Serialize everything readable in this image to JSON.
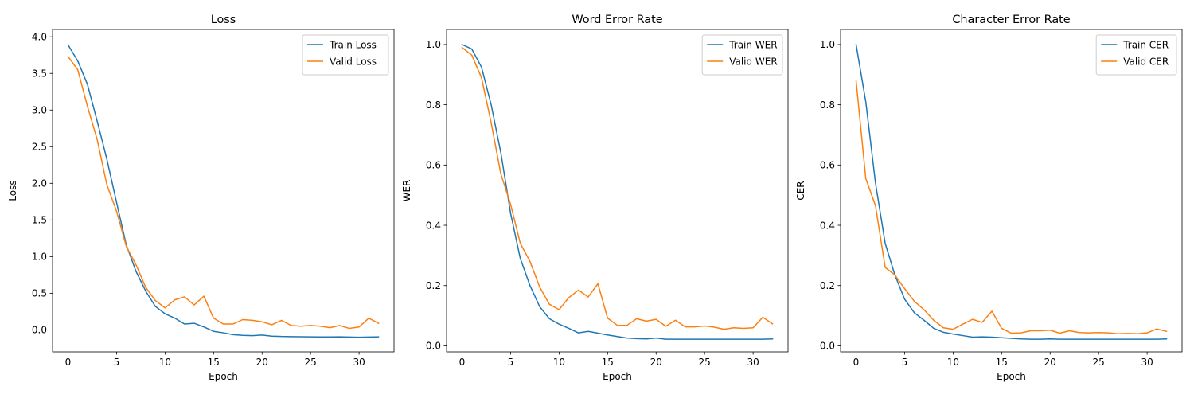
{
  "chart_data": [
    {
      "type": "line",
      "title": "Loss",
      "xlabel": "Epoch",
      "ylabel": "Loss",
      "xlim": [
        -1.6,
        33.6
      ],
      "ylim": [
        -0.3,
        4.1
      ],
      "xticks": [
        0,
        5,
        10,
        15,
        20,
        25,
        30
      ],
      "yticks": [
        0,
        0.5,
        1,
        1.5,
        2,
        2.5,
        3,
        3.5,
        4
      ],
      "ytick_labels": [
        "0.0",
        "0.5",
        "1.0",
        "1.5",
        "2.0",
        "2.5",
        "3.0",
        "3.5",
        "4.0"
      ],
      "legend_position": "top-right",
      "grid": false,
      "series": [
        {
          "name": "Train Loss",
          "color": "#1f77b4",
          "values": [
            3.89,
            3.67,
            3.35,
            2.85,
            2.33,
            1.74,
            1.16,
            0.8,
            0.53,
            0.32,
            0.22,
            0.16,
            0.08,
            0.09,
            0.04,
            -0.02,
            -0.04,
            -0.065,
            -0.075,
            -0.078,
            -0.07,
            -0.085,
            -0.09,
            -0.092,
            -0.093,
            -0.095,
            -0.096,
            -0.096,
            -0.095,
            -0.098,
            -0.1,
            -0.098,
            -0.095
          ]
        },
        {
          "name": "Valid Loss",
          "color": "#ff7f0e",
          "values": [
            3.73,
            3.55,
            3.05,
            2.6,
            1.98,
            1.62,
            1.14,
            0.89,
            0.58,
            0.4,
            0.3,
            0.41,
            0.45,
            0.34,
            0.46,
            0.16,
            0.08,
            0.08,
            0.14,
            0.13,
            0.11,
            0.07,
            0.13,
            0.06,
            0.05,
            0.06,
            0.05,
            0.03,
            0.06,
            0.02,
            0.04,
            0.16,
            0.09
          ]
        }
      ]
    },
    {
      "type": "line",
      "title": "Word Error Rate",
      "xlabel": "Epoch",
      "ylabel": "WER",
      "xlim": [
        -1.6,
        33.6
      ],
      "ylim": [
        -0.02,
        1.05
      ],
      "xticks": [
        0,
        5,
        10,
        15,
        20,
        25,
        30
      ],
      "yticks": [
        0,
        0.2,
        0.4,
        0.6,
        0.8,
        1
      ],
      "ytick_labels": [
        "0.0",
        "0.2",
        "0.4",
        "0.6",
        "0.8",
        "1.0"
      ],
      "legend_position": "top-right",
      "grid": false,
      "series": [
        {
          "name": "Train WER",
          "color": "#1f77b4",
          "values": [
            1.0,
            0.985,
            0.925,
            0.8,
            0.64,
            0.44,
            0.29,
            0.2,
            0.13,
            0.09,
            0.072,
            0.058,
            0.043,
            0.048,
            0.042,
            0.036,
            0.031,
            0.026,
            0.024,
            0.023,
            0.026,
            0.022,
            0.022,
            0.022,
            0.022,
            0.022,
            0.022,
            0.022,
            0.022,
            0.022,
            0.022,
            0.022,
            0.023
          ]
        },
        {
          "name": "Valid WER",
          "color": "#ff7f0e",
          "values": [
            0.99,
            0.965,
            0.89,
            0.74,
            0.57,
            0.47,
            0.34,
            0.28,
            0.195,
            0.138,
            0.12,
            0.16,
            0.185,
            0.162,
            0.206,
            0.092,
            0.068,
            0.068,
            0.09,
            0.082,
            0.088,
            0.065,
            0.085,
            0.063,
            0.063,
            0.066,
            0.062,
            0.055,
            0.06,
            0.058,
            0.06,
            0.095,
            0.073
          ]
        }
      ]
    },
    {
      "type": "line",
      "title": "Character Error Rate",
      "xlabel": "Epoch",
      "ylabel": "CER",
      "xlim": [
        -1.6,
        33.6
      ],
      "ylim": [
        -0.02,
        1.05
      ],
      "xticks": [
        0,
        5,
        10,
        15,
        20,
        25,
        30
      ],
      "yticks": [
        0,
        0.2,
        0.4,
        0.6,
        0.8,
        1
      ],
      "ytick_labels": [
        "0.0",
        "0.2",
        "0.4",
        "0.6",
        "0.8",
        "1.0"
      ],
      "legend_position": "top-right",
      "grid": false,
      "series": [
        {
          "name": "Train CER",
          "color": "#1f77b4",
          "values": [
            1.0,
            0.81,
            0.54,
            0.34,
            0.235,
            0.155,
            0.11,
            0.085,
            0.058,
            0.045,
            0.039,
            0.034,
            0.029,
            0.03,
            0.029,
            0.027,
            0.025,
            0.023,
            0.022,
            0.022,
            0.023,
            0.022,
            0.022,
            0.022,
            0.022,
            0.022,
            0.022,
            0.022,
            0.022,
            0.022,
            0.022,
            0.022,
            0.023
          ]
        },
        {
          "name": "Valid CER",
          "color": "#ff7f0e",
          "values": [
            0.88,
            0.555,
            0.465,
            0.26,
            0.235,
            0.19,
            0.148,
            0.12,
            0.085,
            0.06,
            0.055,
            0.072,
            0.088,
            0.078,
            0.115,
            0.058,
            0.042,
            0.043,
            0.05,
            0.05,
            0.052,
            0.042,
            0.05,
            0.044,
            0.043,
            0.044,
            0.043,
            0.04,
            0.041,
            0.04,
            0.043,
            0.056,
            0.048
          ]
        }
      ]
    }
  ]
}
